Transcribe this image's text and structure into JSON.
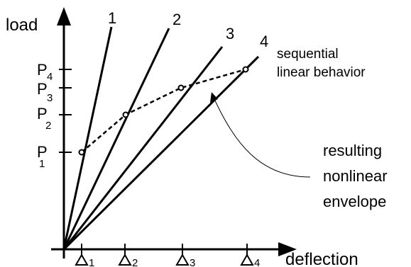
{
  "axes": {
    "y_label": "load",
    "x_label": "deflection"
  },
  "lines": [
    {
      "label": "1"
    },
    {
      "label": "2"
    },
    {
      "label": "3"
    },
    {
      "label": "4"
    }
  ],
  "load_levels": [
    {
      "letter": "P",
      "sub": "1"
    },
    {
      "letter": "P",
      "sub": "2"
    },
    {
      "letter": "P",
      "sub": "3"
    },
    {
      "letter": "P",
      "sub": "4"
    }
  ],
  "deflection_steps": [
    {
      "sub": "1"
    },
    {
      "sub": "2"
    },
    {
      "sub": "3"
    },
    {
      "sub": "4"
    }
  ],
  "annotations": {
    "sequential_line1": "sequential",
    "sequential_line2": "linear behavior",
    "envelope_line1": "resulting",
    "envelope_line2": "nonlinear",
    "envelope_line3": "envelope"
  }
}
